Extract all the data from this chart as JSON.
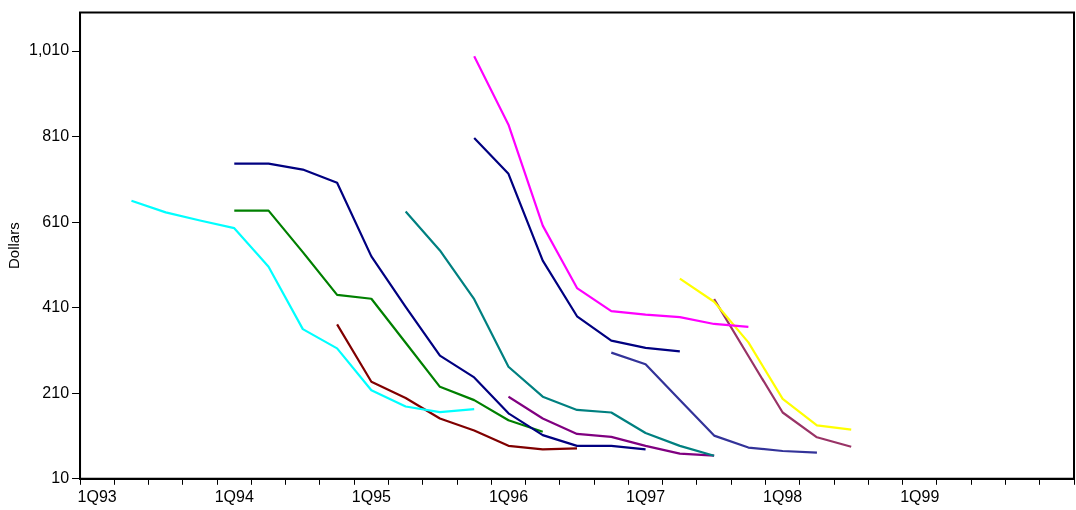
{
  "chart_data": {
    "type": "line",
    "ylabel": "Dollars",
    "categories": [
      "1Q93",
      null,
      null,
      null,
      "1Q94",
      null,
      null,
      null,
      "1Q95",
      null,
      null,
      null,
      "1Q96",
      null,
      null,
      null,
      "1Q97",
      null,
      null,
      null,
      "1Q98",
      null,
      null,
      null,
      "1Q99",
      null,
      null,
      null,
      null
    ],
    "ylim": [
      10,
      1100
    ],
    "yticks": [
      10,
      210,
      410,
      610,
      810,
      {
        "value": 1010,
        "label": "1,010"
      }
    ],
    "grid": false,
    "marker": "none",
    "series": [
      {
        "color": "#00ffff",
        "values": [
          null,
          660,
          633,
          614,
          596,
          506,
          360,
          315,
          217,
          179,
          166,
          173,
          null,
          null,
          null,
          null,
          null,
          null,
          null,
          null,
          null,
          null,
          null,
          null,
          null,
          null,
          null,
          null,
          null
        ]
      },
      {
        "color": "#000080",
        "values": [
          null,
          null,
          null,
          null,
          747,
          747,
          733,
          702,
          530,
          412,
          298,
          247,
          163,
          112,
          87,
          87,
          79,
          null,
          null,
          null,
          null,
          null,
          null,
          null,
          null,
          null,
          null,
          null,
          null
        ]
      },
      {
        "color": "#008000",
        "values": [
          null,
          null,
          null,
          null,
          637,
          637,
          540,
          440,
          431,
          328,
          225,
          194,
          147,
          120,
          null,
          null,
          null,
          null,
          null,
          null,
          null,
          null,
          null,
          null,
          null,
          null,
          null,
          null,
          null
        ]
      },
      {
        "color": "#800000",
        "values": [
          null,
          null,
          null,
          null,
          null,
          null,
          null,
          371,
          237,
          199,
          151,
          123,
          87,
          79,
          81,
          null,
          null,
          null,
          null,
          null,
          null,
          null,
          null,
          null,
          null,
          null,
          null,
          null,
          null
        ]
      },
      {
        "color": "#008080",
        "values": [
          null,
          null,
          null,
          null,
          null,
          null,
          null,
          null,
          null,
          635,
          544,
          430,
          272,
          202,
          171,
          165,
          117,
          87,
          64,
          null,
          null,
          null,
          null,
          null,
          null,
          null,
          null,
          null,
          null
        ]
      },
      {
        "color": "#800080",
        "values": [
          null,
          null,
          null,
          null,
          null,
          null,
          null,
          null,
          null,
          null,
          null,
          null,
          202,
          151,
          115,
          108,
          87,
          69,
          64,
          null,
          null,
          null,
          null,
          null,
          null,
          null,
          null,
          null,
          null
        ]
      },
      {
        "color": "#ff00ff",
        "values": [
          null,
          null,
          null,
          null,
          null,
          null,
          null,
          null,
          null,
          null,
          null,
          998,
          838,
          602,
          456,
          402,
          394,
          388,
          372,
          365,
          null,
          null,
          null,
          null,
          null,
          null,
          null,
          null,
          null
        ]
      },
      {
        "color": "#000080",
        "values": [
          null,
          null,
          null,
          null,
          null,
          null,
          null,
          null,
          null,
          null,
          null,
          807,
          723,
          520,
          390,
          333,
          316,
          308,
          null,
          null,
          null,
          null,
          null,
          null,
          null,
          null,
          null,
          null,
          null
        ]
      },
      {
        "color": "#333399",
        "values": [
          null,
          null,
          null,
          null,
          null,
          null,
          null,
          null,
          null,
          null,
          null,
          null,
          null,
          null,
          null,
          305,
          278,
          194,
          111,
          83,
          75,
          71,
          null,
          null,
          null,
          null,
          null,
          null,
          null
        ]
      },
      {
        "color": "#ffff00",
        "values": [
          null,
          null,
          null,
          null,
          null,
          null,
          null,
          null,
          null,
          null,
          null,
          null,
          null,
          null,
          null,
          null,
          null,
          478,
          424,
          329,
          197,
          135,
          125,
          null,
          null,
          null,
          null,
          null,
          null
        ]
      },
      {
        "color": "#993366",
        "values": [
          null,
          null,
          null,
          null,
          null,
          null,
          null,
          null,
          null,
          null,
          null,
          null,
          null,
          null,
          null,
          null,
          null,
          null,
          430,
          297,
          165,
          107,
          85,
          null,
          null,
          null,
          null,
          null,
          null
        ]
      }
    ]
  }
}
